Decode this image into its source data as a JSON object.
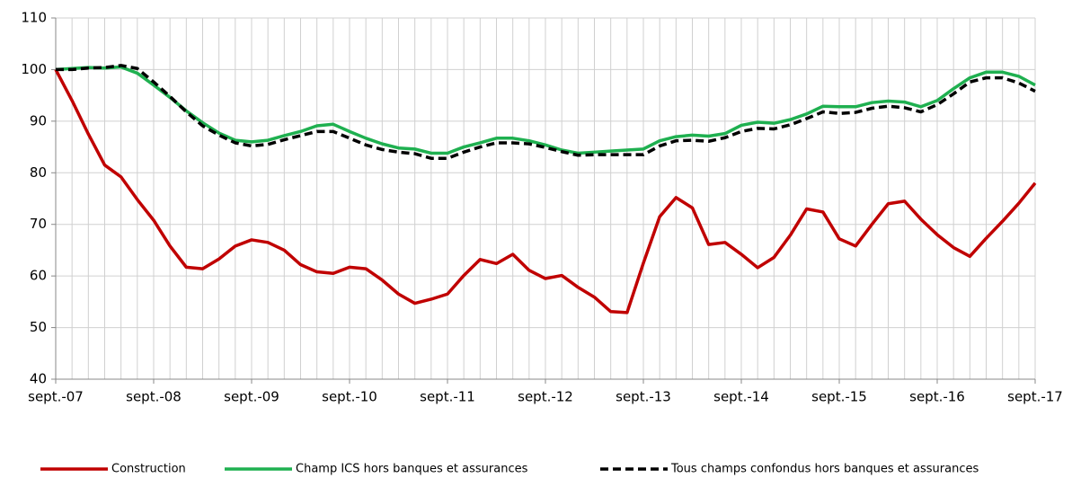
{
  "chart_data": {
    "type": "line",
    "categories": [
      "sept.-07",
      null,
      null,
      null,
      null,
      null,
      "sept.-08",
      null,
      null,
      null,
      null,
      null,
      "sept.-09",
      null,
      null,
      null,
      null,
      null,
      "sept.-10",
      null,
      null,
      null,
      null,
      null,
      "sept.-11",
      null,
      null,
      null,
      null,
      null,
      "sept.-12",
      null,
      null,
      null,
      null,
      null,
      "sept.-13",
      null,
      null,
      null,
      null,
      null,
      "sept.-14",
      null,
      null,
      null,
      null,
      null,
      "sept.-15",
      null,
      null,
      null,
      null,
      null,
      "sept.-16",
      null,
      null,
      null,
      null,
      null,
      "sept.-17"
    ],
    "series": [
      {
        "name": "Construction",
        "color": "#c00000",
        "dash": false,
        "values": [
          100,
          94,
          87.5,
          81.5,
          79.2,
          74.8,
          70.8,
          65.8,
          61.7,
          61.4,
          63.3,
          65.8,
          67,
          66.5,
          65,
          62.2,
          60.8,
          60.5,
          61.7,
          61.4,
          59.2,
          56.5,
          54.7,
          55.5,
          56.5,
          60.1,
          63.2,
          62.4,
          64.2,
          61.1,
          59.5,
          60.1,
          57.8,
          55.9,
          53.1,
          52.9,
          62.5,
          71.5,
          75.2,
          73.2,
          66.1,
          66.5,
          64.2,
          61.6,
          63.6,
          67.9,
          73,
          72.4,
          67.2,
          65.8,
          70,
          74,
          74.5,
          71,
          68,
          65.5,
          63.8,
          67.3,
          70.6,
          74.1,
          78
        ]
      },
      {
        "name": "Champ ICS hors banques et assurances",
        "color": "#1fb050",
        "dash": false,
        "values": [
          100,
          100.2,
          100.4,
          100.3,
          100.5,
          99.3,
          97,
          94.6,
          92,
          89.7,
          87.7,
          86.3,
          86,
          86.3,
          87.2,
          88,
          89.1,
          89.4,
          88,
          86.7,
          85.6,
          84.8,
          84.6,
          83.8,
          83.8,
          85,
          85.8,
          86.7,
          86.7,
          86.2,
          85.4,
          84.4,
          83.8,
          84,
          84.2,
          84.4,
          84.6,
          86.2,
          87,
          87.3,
          87.1,
          87.6,
          89.2,
          89.8,
          89.6,
          90.3,
          91.4,
          92.9,
          92.8,
          92.8,
          93.6,
          93.9,
          93.7,
          92.8,
          94,
          96.3,
          98.4,
          99.5,
          99.5,
          98.7,
          97
        ]
      },
      {
        "name": "Tous champs confondus hors banques et assurances",
        "color": "#000000",
        "dash": true,
        "values": [
          100,
          100,
          100.3,
          100.4,
          100.8,
          100.2,
          97.6,
          94.8,
          91.8,
          89.1,
          87.3,
          85.8,
          85.2,
          85.5,
          86.4,
          87.2,
          88,
          88,
          86.7,
          85.4,
          84.5,
          84,
          83.7,
          82.8,
          82.8,
          84,
          85,
          85.8,
          85.8,
          85.6,
          84.9,
          84.1,
          83.4,
          83.5,
          83.5,
          83.5,
          83.5,
          85.2,
          86.2,
          86.3,
          86.1,
          86.8,
          88,
          88.6,
          88.5,
          89.3,
          90.5,
          91.8,
          91.5,
          91.7,
          92.5,
          92.9,
          92.6,
          91.8,
          93.2,
          95.3,
          97.6,
          98.4,
          98.4,
          97.4,
          95.8
        ]
      }
    ],
    "ylim": [
      40,
      110
    ],
    "yticks": [
      40,
      50,
      60,
      70,
      80,
      90,
      100,
      110
    ],
    "grid": true,
    "legend": "bottom"
  }
}
